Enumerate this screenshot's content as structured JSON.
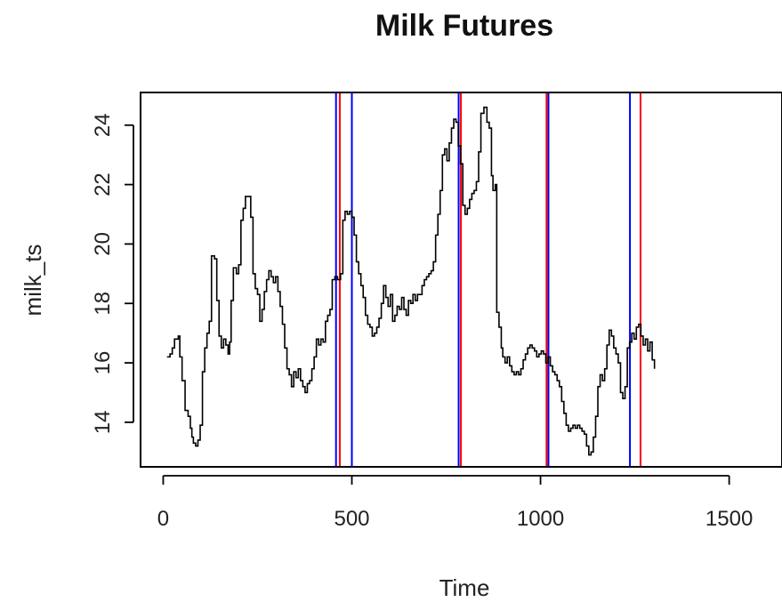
{
  "chart_data": {
    "type": "line",
    "title": "Milk Futures",
    "xlabel": "Time",
    "ylabel": "milk_ts",
    "xlim": [
      -60,
      1640
    ],
    "ylim": [
      12.5,
      25.1
    ],
    "x_ticks": [
      0,
      500,
      1000,
      1500
    ],
    "y_ticks": [
      14,
      16,
      18,
      20,
      22,
      24
    ],
    "grid": false,
    "legend": "none",
    "series": [
      {
        "color": "#000000",
        "points": [
          [
            10,
            16.2
          ],
          [
            18,
            16.3
          ],
          [
            24,
            16.5
          ],
          [
            30,
            16.8
          ],
          [
            40,
            16.9
          ],
          [
            44,
            16.2
          ],
          [
            50,
            15.4
          ],
          [
            58,
            14.4
          ],
          [
            66,
            14.2
          ],
          [
            72,
            13.8
          ],
          [
            76,
            13.5
          ],
          [
            80,
            13.3
          ],
          [
            86,
            13.2
          ],
          [
            92,
            13.4
          ],
          [
            98,
            13.9
          ],
          [
            104,
            15.7
          ],
          [
            110,
            16.5
          ],
          [
            116,
            17.0
          ],
          [
            122,
            17.4
          ],
          [
            128,
            19.6
          ],
          [
            136,
            19.5
          ],
          [
            142,
            18.1
          ],
          [
            148,
            16.9
          ],
          [
            154,
            16.5
          ],
          [
            160,
            16.8
          ],
          [
            166,
            16.6
          ],
          [
            172,
            16.3
          ],
          [
            176,
            16.7
          ],
          [
            180,
            18.1
          ],
          [
            186,
            19.2
          ],
          [
            194,
            19.0
          ],
          [
            200,
            19.3
          ],
          [
            206,
            20.8
          ],
          [
            212,
            21.2
          ],
          [
            218,
            21.6
          ],
          [
            226,
            21.6
          ],
          [
            232,
            20.9
          ],
          [
            238,
            19.0
          ],
          [
            244,
            18.5
          ],
          [
            250,
            18.3
          ],
          [
            256,
            17.4
          ],
          [
            262,
            17.8
          ],
          [
            268,
            18.4
          ],
          [
            274,
            18.8
          ],
          [
            280,
            19.1
          ],
          [
            286,
            18.9
          ],
          [
            292,
            18.7
          ],
          [
            298,
            18.9
          ],
          [
            304,
            18.4
          ],
          [
            310,
            17.9
          ],
          [
            316,
            17.3
          ],
          [
            322,
            16.5
          ],
          [
            328,
            15.8
          ],
          [
            334,
            15.6
          ],
          [
            340,
            15.2
          ],
          [
            346,
            15.7
          ],
          [
            352,
            15.5
          ],
          [
            358,
            15.8
          ],
          [
            364,
            15.4
          ],
          [
            370,
            15.2
          ],
          [
            376,
            15.0
          ],
          [
            382,
            15.3
          ],
          [
            388,
            15.4
          ],
          [
            394,
            15.8
          ],
          [
            400,
            16.2
          ],
          [
            406,
            16.8
          ],
          [
            412,
            16.6
          ],
          [
            418,
            16.8
          ],
          [
            424,
            16.7
          ],
          [
            430,
            17.4
          ],
          [
            436,
            17.6
          ],
          [
            442,
            17.8
          ],
          [
            448,
            18.8
          ],
          [
            455,
            18.9
          ],
          [
            462,
            18.8
          ],
          [
            470,
            19.0
          ],
          [
            476,
            20.8
          ],
          [
            482,
            21.1
          ],
          [
            488,
            21.0
          ],
          [
            494,
            21.1
          ],
          [
            500,
            20.9
          ],
          [
            506,
            20.3
          ],
          [
            512,
            19.4
          ],
          [
            518,
            19.0
          ],
          [
            524,
            18.6
          ],
          [
            530,
            18.2
          ],
          [
            536,
            17.6
          ],
          [
            542,
            17.3
          ],
          [
            548,
            17.2
          ],
          [
            554,
            16.9
          ],
          [
            560,
            17.0
          ],
          [
            566,
            17.2
          ],
          [
            572,
            17.5
          ],
          [
            578,
            18.0
          ],
          [
            584,
            18.6
          ],
          [
            590,
            18.2
          ],
          [
            596,
            17.9
          ],
          [
            602,
            18.3
          ],
          [
            608,
            17.4
          ],
          [
            614,
            17.6
          ],
          [
            620,
            17.9
          ],
          [
            626,
            17.8
          ],
          [
            632,
            18.2
          ],
          [
            638,
            17.8
          ],
          [
            644,
            17.6
          ],
          [
            650,
            18.1
          ],
          [
            656,
            18.0
          ],
          [
            662,
            18.3
          ],
          [
            668,
            18.1
          ],
          [
            674,
            18.3
          ],
          [
            680,
            18.3
          ],
          [
            686,
            18.6
          ],
          [
            692,
            18.8
          ],
          [
            698,
            18.9
          ],
          [
            704,
            19.0
          ],
          [
            710,
            19.1
          ],
          [
            716,
            19.4
          ],
          [
            722,
            20.3
          ],
          [
            728,
            21.0
          ],
          [
            734,
            21.8
          ],
          [
            740,
            23.0
          ],
          [
            746,
            23.2
          ],
          [
            752,
            22.8
          ],
          [
            758,
            23.4
          ],
          [
            764,
            23.9
          ],
          [
            770,
            24.2
          ],
          [
            776,
            24.1
          ],
          [
            782,
            23.3
          ],
          [
            788,
            22.7
          ],
          [
            794,
            21.3
          ],
          [
            800,
            21.0
          ],
          [
            806,
            21.2
          ],
          [
            812,
            21.5
          ],
          [
            818,
            21.7
          ],
          [
            824,
            21.8
          ],
          [
            830,
            22.1
          ],
          [
            836,
            23.1
          ],
          [
            842,
            24.4
          ],
          [
            850,
            24.6
          ],
          [
            858,
            24.1
          ],
          [
            864,
            23.9
          ],
          [
            870,
            22.3
          ],
          [
            874,
            21.8
          ],
          [
            880,
            22.0
          ],
          [
            884,
            17.7
          ],
          [
            890,
            17.2
          ],
          [
            896,
            16.5
          ],
          [
            900,
            16.2
          ],
          [
            906,
            16.0
          ],
          [
            912,
            16.2
          ],
          [
            918,
            15.9
          ],
          [
            924,
            15.7
          ],
          [
            930,
            15.6
          ],
          [
            936,
            15.7
          ],
          [
            942,
            15.6
          ],
          [
            948,
            15.8
          ],
          [
            954,
            16.1
          ],
          [
            960,
            16.3
          ],
          [
            966,
            16.5
          ],
          [
            972,
            16.6
          ],
          [
            978,
            16.5
          ],
          [
            984,
            16.4
          ],
          [
            990,
            16.2
          ],
          [
            996,
            16.3
          ],
          [
            1002,
            16.4
          ],
          [
            1008,
            16.3
          ],
          [
            1014,
            16.0
          ],
          [
            1020,
            16.2
          ],
          [
            1026,
            15.9
          ],
          [
            1032,
            15.7
          ],
          [
            1038,
            15.6
          ],
          [
            1044,
            15.4
          ],
          [
            1050,
            15.2
          ],
          [
            1056,
            14.7
          ],
          [
            1062,
            14.3
          ],
          [
            1068,
            13.9
          ],
          [
            1074,
            13.7
          ],
          [
            1080,
            13.8
          ],
          [
            1086,
            13.9
          ],
          [
            1092,
            13.8
          ],
          [
            1098,
            13.9
          ],
          [
            1104,
            13.8
          ],
          [
            1110,
            13.7
          ],
          [
            1116,
            13.6
          ],
          [
            1122,
            13.2
          ],
          [
            1128,
            12.9
          ],
          [
            1134,
            13.0
          ],
          [
            1140,
            13.5
          ],
          [
            1146,
            14.2
          ],
          [
            1152,
            15.2
          ],
          [
            1158,
            15.6
          ],
          [
            1164,
            15.4
          ],
          [
            1170,
            15.8
          ],
          [
            1176,
            16.6
          ],
          [
            1182,
            17.1
          ],
          [
            1188,
            16.9
          ],
          [
            1194,
            16.5
          ],
          [
            1200,
            16.3
          ],
          [
            1206,
            16.0
          ],
          [
            1212,
            15.0
          ],
          [
            1218,
            14.8
          ],
          [
            1224,
            15.2
          ],
          [
            1230,
            16.5
          ],
          [
            1236,
            16.7
          ],
          [
            1242,
            17.0
          ],
          [
            1248,
            16.8
          ],
          [
            1254,
            17.2
          ],
          [
            1260,
            17.3
          ],
          [
            1266,
            16.9
          ],
          [
            1272,
            16.6
          ],
          [
            1278,
            16.8
          ],
          [
            1284,
            16.4
          ],
          [
            1290,
            16.7
          ],
          [
            1296,
            16.1
          ],
          [
            1302,
            15.8
          ]
        ]
      }
    ],
    "vertical_lines": [
      {
        "x": 468,
        "color": "#ff0000"
      },
      {
        "x": 458,
        "color": "#0000ff"
      },
      {
        "x": 500,
        "color": "#0000ff"
      },
      {
        "x": 783,
        "color": "#0000ff"
      },
      {
        "x": 789,
        "color": "#ff0000"
      },
      {
        "x": 1016,
        "color": "#ff0000"
      },
      {
        "x": 1021,
        "color": "#0000ff"
      },
      {
        "x": 1237,
        "color": "#0000ff"
      },
      {
        "x": 1265,
        "color": "#ff0000"
      }
    ]
  }
}
